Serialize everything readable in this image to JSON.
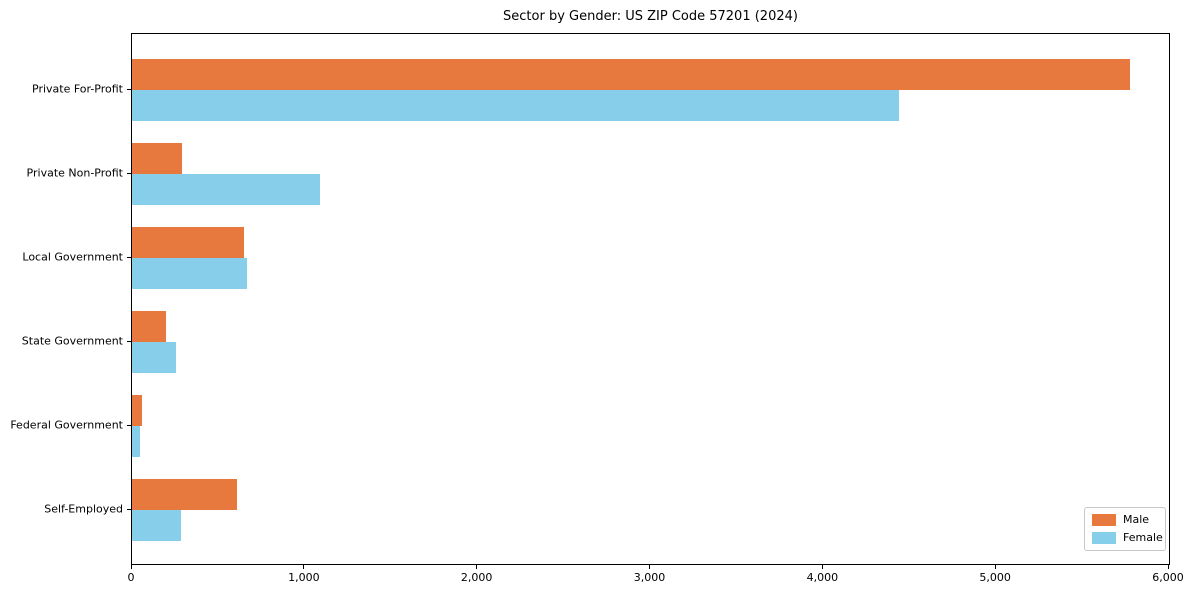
{
  "page": {
    "background_color": "#ffffff",
    "text_color": "#000000"
  },
  "chart_data": {
    "type": "bar",
    "orientation": "horizontal",
    "title": "Sector by Gender: US ZIP Code 57201 (2024)",
    "categories": [
      "Private For-Profit",
      "Private Non-Profit",
      "Local Government",
      "State Government",
      "Federal Government",
      "Self-Employed"
    ],
    "series": [
      {
        "name": "Male",
        "color": "#e8793e",
        "values": [
          5775,
          290,
          645,
          195,
          55,
          610
        ]
      },
      {
        "name": "Female",
        "color": "#87ceeb",
        "values": [
          4435,
          1085,
          665,
          255,
          45,
          285
        ]
      }
    ],
    "xlabel": "",
    "ylabel": "",
    "xlim": [
      0,
      6000
    ],
    "xticks": [
      0,
      1000,
      2000,
      3000,
      4000,
      5000,
      6000
    ],
    "xtick_labels": [
      "0",
      "1,000",
      "2,000",
      "3,000",
      "4,000",
      "5,000",
      "6,000"
    ],
    "grid": false,
    "legend": {
      "position": "lower right",
      "entries": [
        "Male",
        "Female"
      ]
    }
  }
}
